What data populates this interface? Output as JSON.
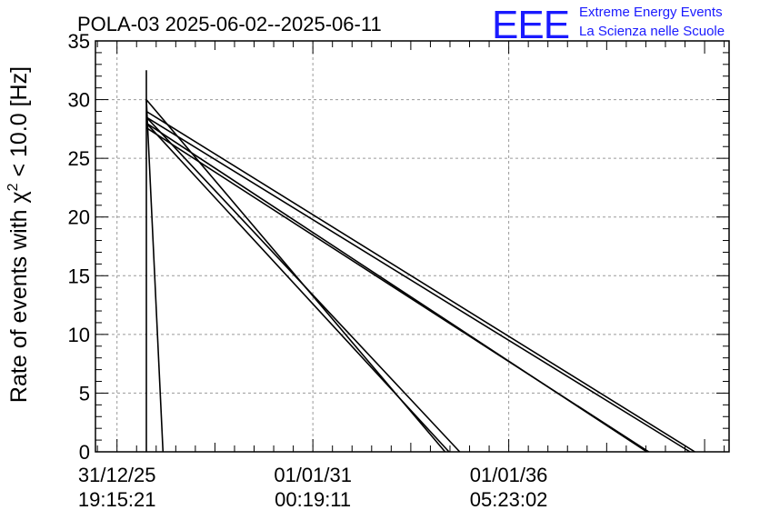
{
  "header": {
    "title": "POLA-03 2025-06-02--2025-06-11",
    "logo_mark": "EEE",
    "logo_line1": "Extreme Energy Events",
    "logo_line2": "La Scienza nelle Scuole"
  },
  "colors": {
    "logo": "#1a1aff",
    "line": "#000000",
    "grid": "#9a9a9a"
  },
  "chart_data": {
    "type": "line",
    "title": "POLA-03 2025-06-02--2025-06-11",
    "ylabel_prefix": "Rate of events with ",
    "ylabel_chi": "χ",
    "ylabel_exp": "2",
    "ylabel_suffix": " < 10.0 [Hz]",
    "xlabel": "",
    "ylim": [
      0,
      35
    ],
    "yticks": [
      0,
      5,
      10,
      15,
      20,
      25,
      30,
      35
    ],
    "xlim": [
      -0.22,
      6.25
    ],
    "x_tick_positions": [
      0,
      2,
      4
    ],
    "x_tick_labels": [
      [
        "31/12/25",
        "19:15:21"
      ],
      [
        "01/01/31",
        "00:19:11"
      ],
      [
        "01/01/36",
        "05:23:02"
      ]
    ],
    "grid": true,
    "series": [
      {
        "x": [
          0.3,
          0.3
        ],
        "y": [
          0,
          32.5
        ]
      },
      {
        "x": [
          0.3,
          0.47
        ],
        "y": [
          30.0,
          0
        ]
      },
      {
        "x": [
          0.3,
          3.35
        ],
        "y": [
          30.0,
          0
        ]
      },
      {
        "x": [
          0.3,
          3.5
        ],
        "y": [
          28.5,
          0
        ]
      },
      {
        "x": [
          0.3,
          3.39
        ],
        "y": [
          28.0,
          0
        ]
      },
      {
        "x": [
          0.3,
          5.9
        ],
        "y": [
          29.0,
          0
        ]
      },
      {
        "x": [
          0.3,
          5.85
        ],
        "y": [
          28.5,
          0
        ]
      },
      {
        "x": [
          0.3,
          5.41
        ],
        "y": [
          28.0,
          0
        ]
      },
      {
        "x": [
          0.3,
          5.43
        ],
        "y": [
          27.6,
          0
        ]
      }
    ]
  }
}
